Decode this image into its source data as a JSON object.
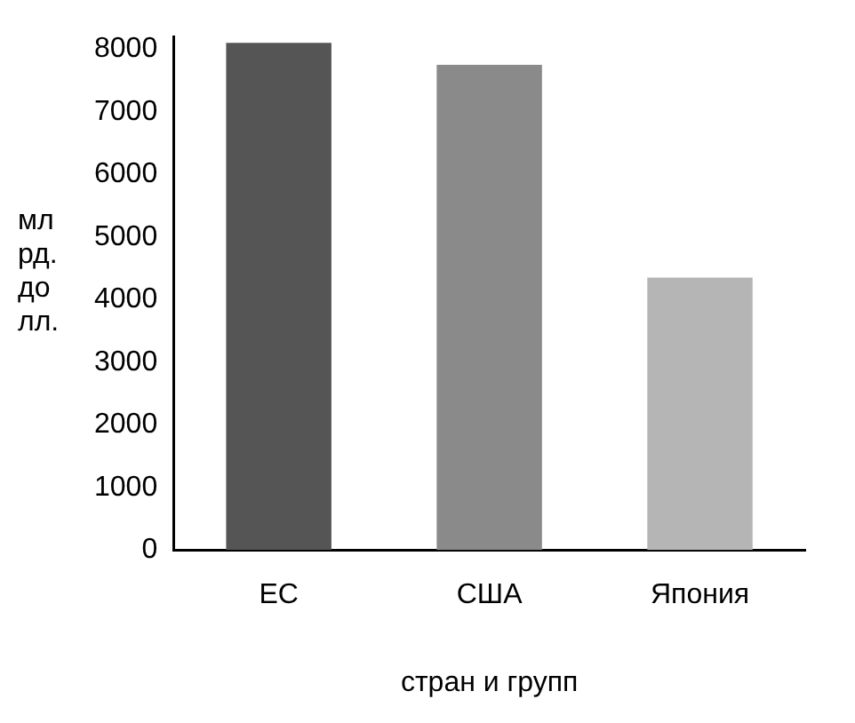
{
  "chart_data": {
    "type": "bar",
    "xlabel": "стран и групп",
    "ylabel": "мл рд. до лл.",
    "categories": [
      "ЕС",
      "США",
      "Япония"
    ],
    "values": [
      8100,
      7750,
      4350
    ],
    "colors": [
      "#555555",
      "#8a8a8a",
      "#b5b5b5"
    ],
    "ylim": [
      0,
      8200
    ],
    "yticks": [
      0,
      1000,
      2000,
      3000,
      4000,
      5000,
      6000,
      7000,
      8000
    ],
    "grid": false,
    "legend": false
  }
}
